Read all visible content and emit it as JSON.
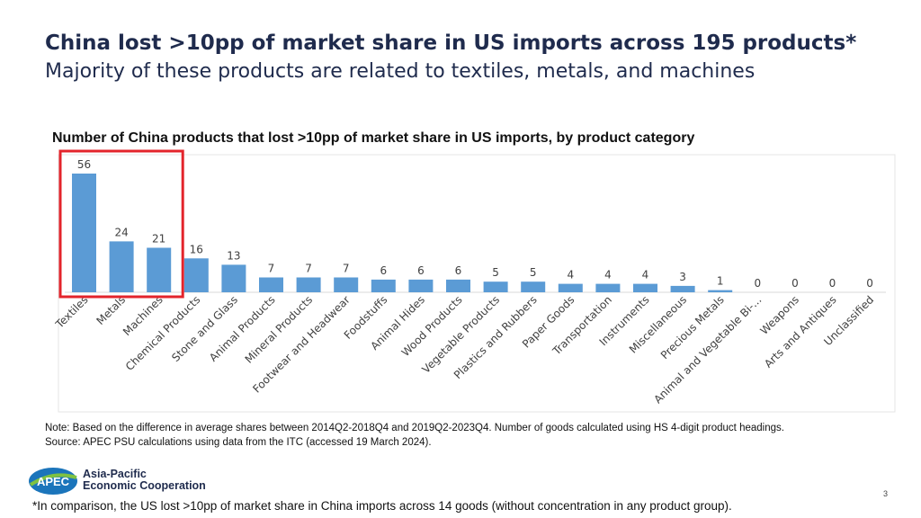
{
  "slide": {
    "title": "China lost >10pp of market share in US imports across 195 products*",
    "subtitle": "Majority of these products are related to textiles, metals, and machines",
    "note_line1": "Note: Based on the difference in average shares between 2014Q2-2018Q4 and 2019Q2-2023Q4. Number of goods calculated using HS 4-digit product headings.",
    "note_line2": "Source: APEC PSU calculations using data from the ITC (accessed 19 March 2024).",
    "logo_line1": "Asia-Pacific",
    "logo_line2": "Economic Cooperation",
    "logo_mark": "APEC",
    "footnote": "*In comparison, the US lost >10pp of market share in China imports across 14 goods (without concentration in any product group).",
    "page_number": "3"
  },
  "chart_data": {
    "type": "bar",
    "title": "Number of China products that lost >10pp of market share in US imports, by product category",
    "categories": [
      "Textiles",
      "Metals",
      "Machines",
      "Chemical Products",
      "Stone and Glass",
      "Animal Products",
      "Mineral Products",
      "Footwear and Headwear",
      "Foodstuffs",
      "Animal Hides",
      "Wood Products",
      "Vegetable Products",
      "Plastics and Rubbers",
      "Paper Goods",
      "Transportation",
      "Instruments",
      "Miscellaneous",
      "Precious Metals",
      "Animal and Vegetable Bi-...",
      "Weapons",
      "Arts and Antiques",
      "Unclassified"
    ],
    "values": [
      56,
      24,
      21,
      16,
      13,
      7,
      7,
      7,
      6,
      6,
      6,
      5,
      5,
      4,
      4,
      4,
      3,
      1,
      0,
      0,
      0,
      0
    ],
    "ylim": [
      0,
      56
    ],
    "xlabel": "",
    "ylabel": "",
    "bar_color": "#5b9bd5",
    "highlight_color": "#e3242b",
    "highlighted_categories": [
      "Textiles",
      "Metals",
      "Machines"
    ]
  }
}
